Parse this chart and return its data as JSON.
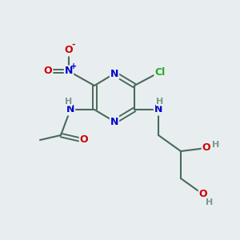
{
  "bg_color": "#e8eef0",
  "atom_colors": {
    "C": "#404040",
    "N": "#0000cc",
    "O": "#cc0000",
    "H": "#7a9a8a",
    "Cl": "#22aa22",
    "bond": "#4a6a5a"
  }
}
